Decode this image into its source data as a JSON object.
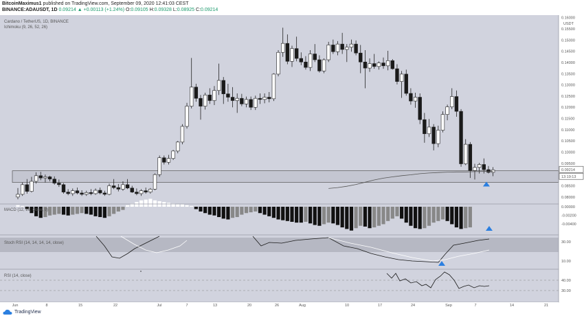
{
  "header": {
    "publisher": "BitcoinMaximus1",
    "published_text": "published on TradingView.com, September 09, 2020 12:41:03 CEST",
    "symbol": "BINANCE:ADAUSDT, 1D",
    "last_price": "0.09214",
    "change": "▲ +0.00113 (+1.24%)",
    "ohlc_o_label": "O:",
    "ohlc_o": "0.09105",
    "ohlc_h_label": "H:",
    "ohlc_h": "0.09328",
    "ohlc_l_label": "L:",
    "ohlc_l": "0.08925",
    "ohlc_c_label": "C:",
    "ohlc_c": "0.09214"
  },
  "chart_labels": {
    "title": "Cardano / TetherUS, 1D, BINANCE",
    "ichimoku": "Ichimoku (9, 26, 52, 26)",
    "macd": "MACD (12, 26, close, 9)",
    "stoch": "Stoch RSI (14, 14, 14, 14, close)",
    "rsi": "RSI (14, close)",
    "currency": "USDT",
    "last_price_tag": "0.09214",
    "countdown_tag": "13:19:13"
  },
  "footer": {
    "brand": "TradingView"
  },
  "colors": {
    "background": "#d1d3de",
    "bull_candle": "#ffffff",
    "bear_candle": "#1a1a1a",
    "ma_line": "#555555",
    "support_zone": "#c4c6d1",
    "signal_triangle": "#2b7fe0",
    "macd_dark": "#111111",
    "macd_light": "#ffffff",
    "macd_gray": "#888888",
    "stoch_band": "#b6b8c3"
  },
  "chart_data": [
    {
      "type": "candlestick",
      "title": "Cardano / TetherUS, 1D, BINANCE",
      "y_ticks": [
        "0.16000",
        "0.15500",
        "0.15000",
        "0.14500",
        "0.14000",
        "0.13500",
        "0.13000",
        "0.12500",
        "0.12000",
        "0.11500",
        "0.11000",
        "0.10500",
        "0.10000",
        "0.09500",
        "0.09000",
        "0.08500",
        "0.08000"
      ],
      "ylim": [
        0.0775,
        0.1605
      ],
      "x_ticks": [
        "Jun",
        "8",
        "15",
        "22",
        "Jul",
        "7",
        "13",
        "20",
        "26",
        "Aug",
        "10",
        "17",
        "24",
        "Sep",
        "7",
        "14",
        "21"
      ],
      "support_zone": [
        0.0865,
        0.0917
      ],
      "last_price": 0.09214,
      "candles": [
        {
          "o": 0.08,
          "h": 0.084,
          "l": 0.079,
          "c": 0.0812
        },
        {
          "o": 0.0812,
          "h": 0.0865,
          "l": 0.0805,
          "c": 0.0855
        },
        {
          "o": 0.0855,
          "h": 0.088,
          "l": 0.0815,
          "c": 0.0825
        },
        {
          "o": 0.0825,
          "h": 0.089,
          "l": 0.082,
          "c": 0.087
        },
        {
          "o": 0.087,
          "h": 0.091,
          "l": 0.086,
          "c": 0.0895
        },
        {
          "o": 0.0895,
          "h": 0.0912,
          "l": 0.0875,
          "c": 0.0885
        },
        {
          "o": 0.0885,
          "h": 0.09,
          "l": 0.0865,
          "c": 0.089
        },
        {
          "o": 0.089,
          "h": 0.0895,
          "l": 0.087,
          "c": 0.088
        },
        {
          "o": 0.088,
          "h": 0.0892,
          "l": 0.0855,
          "c": 0.0862
        },
        {
          "o": 0.0862,
          "h": 0.0878,
          "l": 0.0845,
          "c": 0.0855
        },
        {
          "o": 0.0855,
          "h": 0.0862,
          "l": 0.0815,
          "c": 0.0822
        },
        {
          "o": 0.0822,
          "h": 0.0835,
          "l": 0.0808,
          "c": 0.0815
        },
        {
          "o": 0.0815,
          "h": 0.0838,
          "l": 0.0805,
          "c": 0.0828
        },
        {
          "o": 0.0828,
          "h": 0.0842,
          "l": 0.0812,
          "c": 0.0818
        },
        {
          "o": 0.0818,
          "h": 0.083,
          "l": 0.0805,
          "c": 0.0812
        },
        {
          "o": 0.0812,
          "h": 0.0828,
          "l": 0.0805,
          "c": 0.082
        },
        {
          "o": 0.082,
          "h": 0.0835,
          "l": 0.0808,
          "c": 0.0815
        },
        {
          "o": 0.0815,
          "h": 0.0838,
          "l": 0.081,
          "c": 0.083
        },
        {
          "o": 0.083,
          "h": 0.0842,
          "l": 0.0812,
          "c": 0.0818
        },
        {
          "o": 0.0818,
          "h": 0.0828,
          "l": 0.0805,
          "c": 0.0812
        },
        {
          "o": 0.0812,
          "h": 0.086,
          "l": 0.0808,
          "c": 0.085
        },
        {
          "o": 0.085,
          "h": 0.088,
          "l": 0.0835,
          "c": 0.0842
        },
        {
          "o": 0.0842,
          "h": 0.0858,
          "l": 0.0825,
          "c": 0.0835
        },
        {
          "o": 0.0835,
          "h": 0.087,
          "l": 0.0828,
          "c": 0.0855
        },
        {
          "o": 0.0855,
          "h": 0.088,
          "l": 0.0835,
          "c": 0.084
        },
        {
          "o": 0.084,
          "h": 0.085,
          "l": 0.0818,
          "c": 0.0822
        },
        {
          "o": 0.0822,
          "h": 0.0838,
          "l": 0.0808,
          "c": 0.0815
        },
        {
          "o": 0.0815,
          "h": 0.0835,
          "l": 0.0805,
          "c": 0.0828
        },
        {
          "o": 0.0828,
          "h": 0.0842,
          "l": 0.0815,
          "c": 0.0822
        },
        {
          "o": 0.0822,
          "h": 0.084,
          "l": 0.0815,
          "c": 0.0835
        },
        {
          "o": 0.0835,
          "h": 0.0905,
          "l": 0.083,
          "c": 0.09
        },
        {
          "o": 0.09,
          "h": 0.0985,
          "l": 0.089,
          "c": 0.0975
        },
        {
          "o": 0.0975,
          "h": 0.0985,
          "l": 0.0945,
          "c": 0.0955
        },
        {
          "o": 0.0955,
          "h": 0.0988,
          "l": 0.0945,
          "c": 0.0972
        },
        {
          "o": 0.0972,
          "h": 0.101,
          "l": 0.0965,
          "c": 0.1005
        },
        {
          "o": 0.1005,
          "h": 0.105,
          "l": 0.0995,
          "c": 0.1045
        },
        {
          "o": 0.1045,
          "h": 0.1125,
          "l": 0.1035,
          "c": 0.1115
        },
        {
          "o": 0.1115,
          "h": 0.122,
          "l": 0.1105,
          "c": 0.1205
        },
        {
          "o": 0.1205,
          "h": 0.142,
          "l": 0.1195,
          "c": 0.129
        },
        {
          "o": 0.129,
          "h": 0.1305,
          "l": 0.1225,
          "c": 0.124
        },
        {
          "o": 0.124,
          "h": 0.1255,
          "l": 0.1145,
          "c": 0.1205
        },
        {
          "o": 0.1205,
          "h": 0.1265,
          "l": 0.119,
          "c": 0.1255
        },
        {
          "o": 0.1255,
          "h": 0.1285,
          "l": 0.1215,
          "c": 0.123
        },
        {
          "o": 0.123,
          "h": 0.1295,
          "l": 0.121,
          "c": 0.1275
        },
        {
          "o": 0.1275,
          "h": 0.1395,
          "l": 0.1255,
          "c": 0.132
        },
        {
          "o": 0.132,
          "h": 0.1335,
          "l": 0.1215,
          "c": 0.126
        },
        {
          "o": 0.126,
          "h": 0.1305,
          "l": 0.1225,
          "c": 0.1245
        },
        {
          "o": 0.1245,
          "h": 0.129,
          "l": 0.12,
          "c": 0.123
        },
        {
          "o": 0.123,
          "h": 0.1262,
          "l": 0.1175,
          "c": 0.124
        },
        {
          "o": 0.124,
          "h": 0.126,
          "l": 0.1205,
          "c": 0.1215
        },
        {
          "o": 0.1215,
          "h": 0.1248,
          "l": 0.12,
          "c": 0.1235
        },
        {
          "o": 0.1235,
          "h": 0.1248,
          "l": 0.1188,
          "c": 0.12
        },
        {
          "o": 0.12,
          "h": 0.1252,
          "l": 0.1188,
          "c": 0.124
        },
        {
          "o": 0.124,
          "h": 0.1262,
          "l": 0.1215,
          "c": 0.1235
        },
        {
          "o": 0.1235,
          "h": 0.1262,
          "l": 0.1218,
          "c": 0.1245
        },
        {
          "o": 0.1245,
          "h": 0.1268,
          "l": 0.1222,
          "c": 0.1238
        },
        {
          "o": 0.1238,
          "h": 0.1352,
          "l": 0.1228,
          "c": 0.1348
        },
        {
          "o": 0.1348,
          "h": 0.1455,
          "l": 0.1338,
          "c": 0.1445
        },
        {
          "o": 0.1445,
          "h": 0.1555,
          "l": 0.1425,
          "c": 0.1485
        },
        {
          "o": 0.1485,
          "h": 0.1525,
          "l": 0.1392,
          "c": 0.1405
        },
        {
          "o": 0.1405,
          "h": 0.1475,
          "l": 0.138,
          "c": 0.1462
        },
        {
          "o": 0.1462,
          "h": 0.1515,
          "l": 0.1405,
          "c": 0.1418
        },
        {
          "o": 0.1418,
          "h": 0.1445,
          "l": 0.1388,
          "c": 0.1402
        },
        {
          "o": 0.1402,
          "h": 0.1428,
          "l": 0.1368,
          "c": 0.1378
        },
        {
          "o": 0.1378,
          "h": 0.1455,
          "l": 0.1362,
          "c": 0.1438
        },
        {
          "o": 0.1438,
          "h": 0.1482,
          "l": 0.1402,
          "c": 0.1412
        },
        {
          "o": 0.1412,
          "h": 0.1432,
          "l": 0.1355,
          "c": 0.1362
        },
        {
          "o": 0.1362,
          "h": 0.1418,
          "l": 0.1352,
          "c": 0.1412
        },
        {
          "o": 0.1412,
          "h": 0.1492,
          "l": 0.1402,
          "c": 0.1478
        },
        {
          "o": 0.1478,
          "h": 0.1502,
          "l": 0.1438,
          "c": 0.1448
        },
        {
          "o": 0.1448,
          "h": 0.1495,
          "l": 0.1432,
          "c": 0.1482
        },
        {
          "o": 0.1482,
          "h": 0.1532,
          "l": 0.1438,
          "c": 0.1458
        },
        {
          "o": 0.1458,
          "h": 0.1482,
          "l": 0.1402,
          "c": 0.1468
        },
        {
          "o": 0.1468,
          "h": 0.1502,
          "l": 0.1448,
          "c": 0.1482
        },
        {
          "o": 0.1482,
          "h": 0.1498,
          "l": 0.1432,
          "c": 0.1442
        },
        {
          "o": 0.1442,
          "h": 0.1478,
          "l": 0.1352,
          "c": 0.1402
        },
        {
          "o": 0.1402,
          "h": 0.1455,
          "l": 0.1285,
          "c": 0.1375
        },
        {
          "o": 0.1375,
          "h": 0.1418,
          "l": 0.1358,
          "c": 0.1395
        },
        {
          "o": 0.1395,
          "h": 0.1438,
          "l": 0.1372,
          "c": 0.1382
        },
        {
          "o": 0.1382,
          "h": 0.1405,
          "l": 0.1368,
          "c": 0.1398
        },
        {
          "o": 0.1398,
          "h": 0.1422,
          "l": 0.1372,
          "c": 0.1385
        },
        {
          "o": 0.1385,
          "h": 0.1452,
          "l": 0.1365,
          "c": 0.1408
        },
        {
          "o": 0.1408,
          "h": 0.1415,
          "l": 0.1368,
          "c": 0.1372
        },
        {
          "o": 0.1372,
          "h": 0.1392,
          "l": 0.1302,
          "c": 0.1315
        },
        {
          "o": 0.1315,
          "h": 0.1362,
          "l": 0.1242,
          "c": 0.1348
        },
        {
          "o": 0.1348,
          "h": 0.1368,
          "l": 0.1252,
          "c": 0.1262
        },
        {
          "o": 0.1262,
          "h": 0.1285,
          "l": 0.1212,
          "c": 0.1228
        },
        {
          "o": 0.1228,
          "h": 0.1265,
          "l": 0.1198,
          "c": 0.1245
        },
        {
          "o": 0.1245,
          "h": 0.1262,
          "l": 0.1125,
          "c": 0.1145
        },
        {
          "o": 0.1145,
          "h": 0.1175,
          "l": 0.1042,
          "c": 0.1082
        },
        {
          "o": 0.1082,
          "h": 0.1148,
          "l": 0.1068,
          "c": 0.1112
        },
        {
          "o": 0.1112,
          "h": 0.1125,
          "l": 0.1008,
          "c": 0.1038
        },
        {
          "o": 0.1038,
          "h": 0.1118,
          "l": 0.1022,
          "c": 0.1098
        },
        {
          "o": 0.1098,
          "h": 0.1182,
          "l": 0.1088,
          "c": 0.1168
        },
        {
          "o": 0.1168,
          "h": 0.1212,
          "l": 0.1142,
          "c": 0.1202
        },
        {
          "o": 0.1202,
          "h": 0.1285,
          "l": 0.1192,
          "c": 0.1248
        },
        {
          "o": 0.1248,
          "h": 0.1275,
          "l": 0.1158,
          "c": 0.1182
        },
        {
          "o": 0.1182,
          "h": 0.1192,
          "l": 0.0935,
          "c": 0.0948
        },
        {
          "o": 0.0948,
          "h": 0.1058,
          "l": 0.0942,
          "c": 0.1035
        },
        {
          "o": 0.1035,
          "h": 0.1045,
          "l": 0.0885,
          "c": 0.0918
        },
        {
          "o": 0.0918,
          "h": 0.0948,
          "l": 0.0878,
          "c": 0.0932
        },
        {
          "o": 0.0932,
          "h": 0.0952,
          "l": 0.0905,
          "c": 0.0945
        },
        {
          "o": 0.0945,
          "h": 0.0972,
          "l": 0.0905,
          "c": 0.0922
        },
        {
          "o": 0.0922,
          "h": 0.0938,
          "l": 0.0905,
          "c": 0.091
        },
        {
          "o": 0.091,
          "h": 0.0933,
          "l": 0.0893,
          "c": 0.0921
        }
      ],
      "ma_line": [
        0.0838,
        0.0842,
        0.0848,
        0.0856,
        0.0866,
        0.0876,
        0.0884,
        0.089,
        0.0895,
        0.0899,
        0.0904,
        0.0907,
        0.0909,
        0.0911,
        0.0912,
        0.0912,
        0.0913,
        0.0914,
        0.0915
      ]
    },
    {
      "type": "bar",
      "name": "MACD",
      "y_ticks": [
        "0.00000",
        "-0.00200",
        "-0.00400"
      ],
      "values": [
        0.0002,
        0.0001,
        -0.0003,
        -0.0008,
        -0.0012,
        -0.0014,
        -0.0013,
        -0.0011,
        -0.001,
        -0.0009,
        -0.001,
        -0.0011,
        -0.001,
        -0.0009,
        -0.0008,
        -0.0009,
        -0.001,
        -0.0012,
        -0.0013,
        -0.0014,
        -0.0012,
        -0.0009,
        -0.0006,
        -0.0004,
        0.0002,
        0.0004,
        0.0006,
        0.0008,
        0.0009,
        0.001,
        0.0008,
        0.0007,
        0.0006,
        0.0005,
        0.0004,
        0.0003,
        0.0003,
        0.0002,
        0.0001,
        -0.0003,
        -0.0006,
        -0.0008,
        -0.001,
        -0.0011,
        -0.0013,
        -0.0015,
        -0.0016,
        -0.0014,
        -0.0013,
        -0.001,
        -0.0008,
        -0.0007,
        -0.0006,
        -0.0008,
        -0.001,
        -0.0012,
        -0.0014,
        -0.0016,
        -0.0017,
        -0.0018,
        -0.0019,
        -0.002,
        -0.002,
        -0.0019,
        -0.0021,
        -0.0023,
        -0.0024,
        -0.0022,
        -0.002,
        -0.0021,
        -0.0023,
        -0.0026,
        -0.0028,
        -0.003,
        -0.0027,
        -0.0024,
        -0.0025,
        -0.0027,
        -0.0026,
        -0.0024,
        -0.0022,
        -0.0018,
        -0.0015,
        -0.0012,
        -0.0015,
        -0.002,
        -0.0024,
        -0.0027,
        -0.0028,
        -0.0027,
        -0.0024,
        -0.002,
        -0.0018,
        -0.0016,
        -0.0018,
        -0.0022,
        -0.0026,
        -0.0028,
        -0.0027,
        -0.0026
      ]
    },
    {
      "type": "line",
      "name": "Stoch RSI",
      "y_ticks": [
        "30.00",
        "10.00"
      ]
    },
    {
      "type": "line",
      "name": "RSI",
      "y_ticks": [
        "40.00",
        "30.00"
      ]
    }
  ]
}
